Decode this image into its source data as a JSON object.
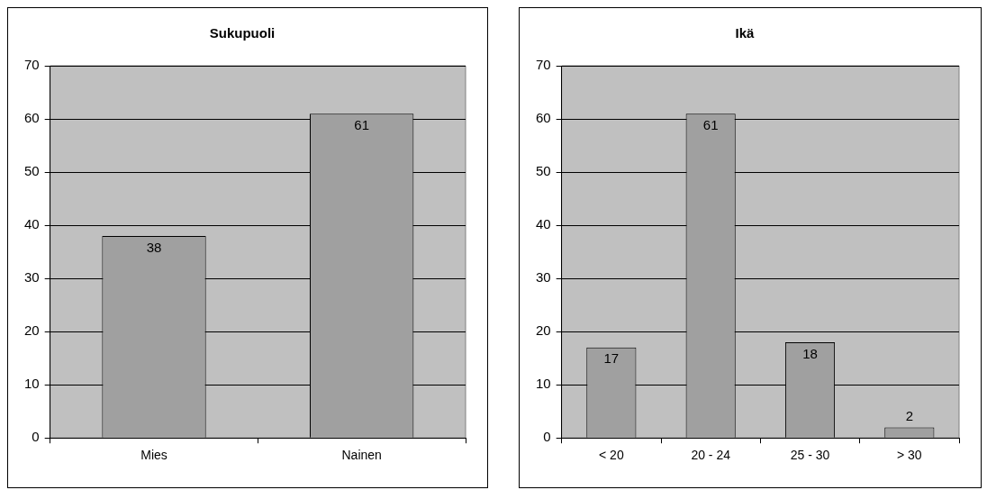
{
  "chart_data": [
    {
      "type": "bar",
      "title": "Sukupuoli",
      "categories": [
        "Mies",
        "Nainen"
      ],
      "values": [
        38,
        61
      ],
      "color": "#a0a0a0",
      "ylim": [
        0,
        70
      ],
      "yticks": [
        0,
        10,
        20,
        30,
        40,
        50,
        60,
        70
      ],
      "grid": "y",
      "data_labels": true
    },
    {
      "type": "bar",
      "title": "Ikä",
      "categories": [
        "< 20",
        "20 - 24",
        "25 - 30",
        "> 30"
      ],
      "values": [
        17,
        61,
        18,
        2
      ],
      "color": "#a0a0a0",
      "ylim": [
        0,
        70
      ],
      "yticks": [
        0,
        10,
        20,
        30,
        40,
        50,
        60,
        70
      ],
      "grid": "y",
      "data_labels": true
    }
  ]
}
